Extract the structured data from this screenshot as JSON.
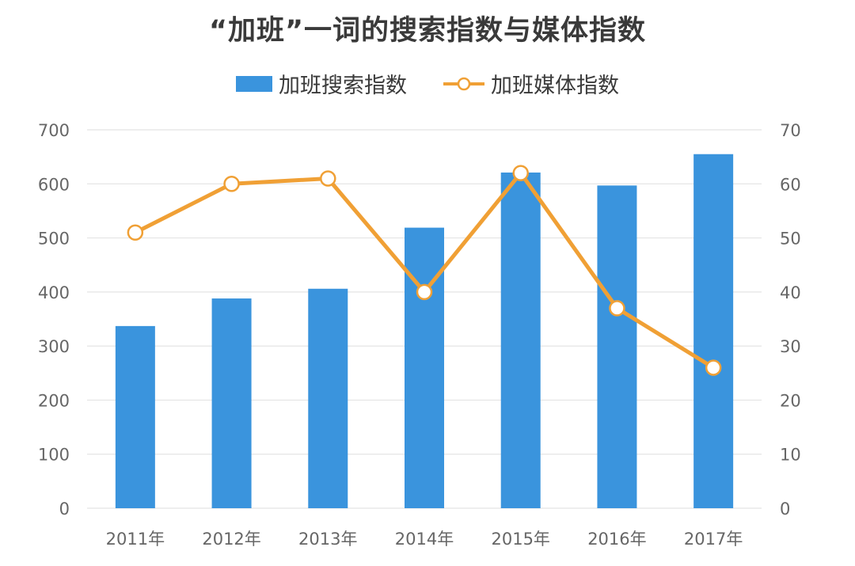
{
  "title": "“加班”一词的搜索指数与媒体指数",
  "colors": {
    "bar": "#3a94dd",
    "line": "#f0a035",
    "grid": "#e4e4e4",
    "axis_text": "#666666"
  },
  "chart_data": {
    "type": "bar+line",
    "title": "“加班”一词的搜索指数与媒体指数",
    "categories": [
      "2011年",
      "2012年",
      "2013年",
      "2014年",
      "2015年",
      "2016年",
      "2017年"
    ],
    "series": [
      {
        "name": "加班搜索指数",
        "type": "bar",
        "axis": "left",
        "values": [
          337,
          388,
          406,
          519,
          621,
          597,
          655
        ]
      },
      {
        "name": "加班媒体指数",
        "type": "line",
        "axis": "right",
        "values": [
          51,
          60,
          61,
          40,
          62,
          37,
          26
        ]
      }
    ],
    "y_left": {
      "min": 0,
      "max": 700,
      "ticks": [
        "0",
        "100",
        "200",
        "300",
        "400",
        "500",
        "600",
        "700"
      ]
    },
    "y_right": {
      "min": 0,
      "max": 70,
      "ticks": [
        "0",
        "10",
        "20",
        "30",
        "40",
        "50",
        "60",
        "70"
      ]
    },
    "grid": true,
    "legend": "top-center"
  }
}
